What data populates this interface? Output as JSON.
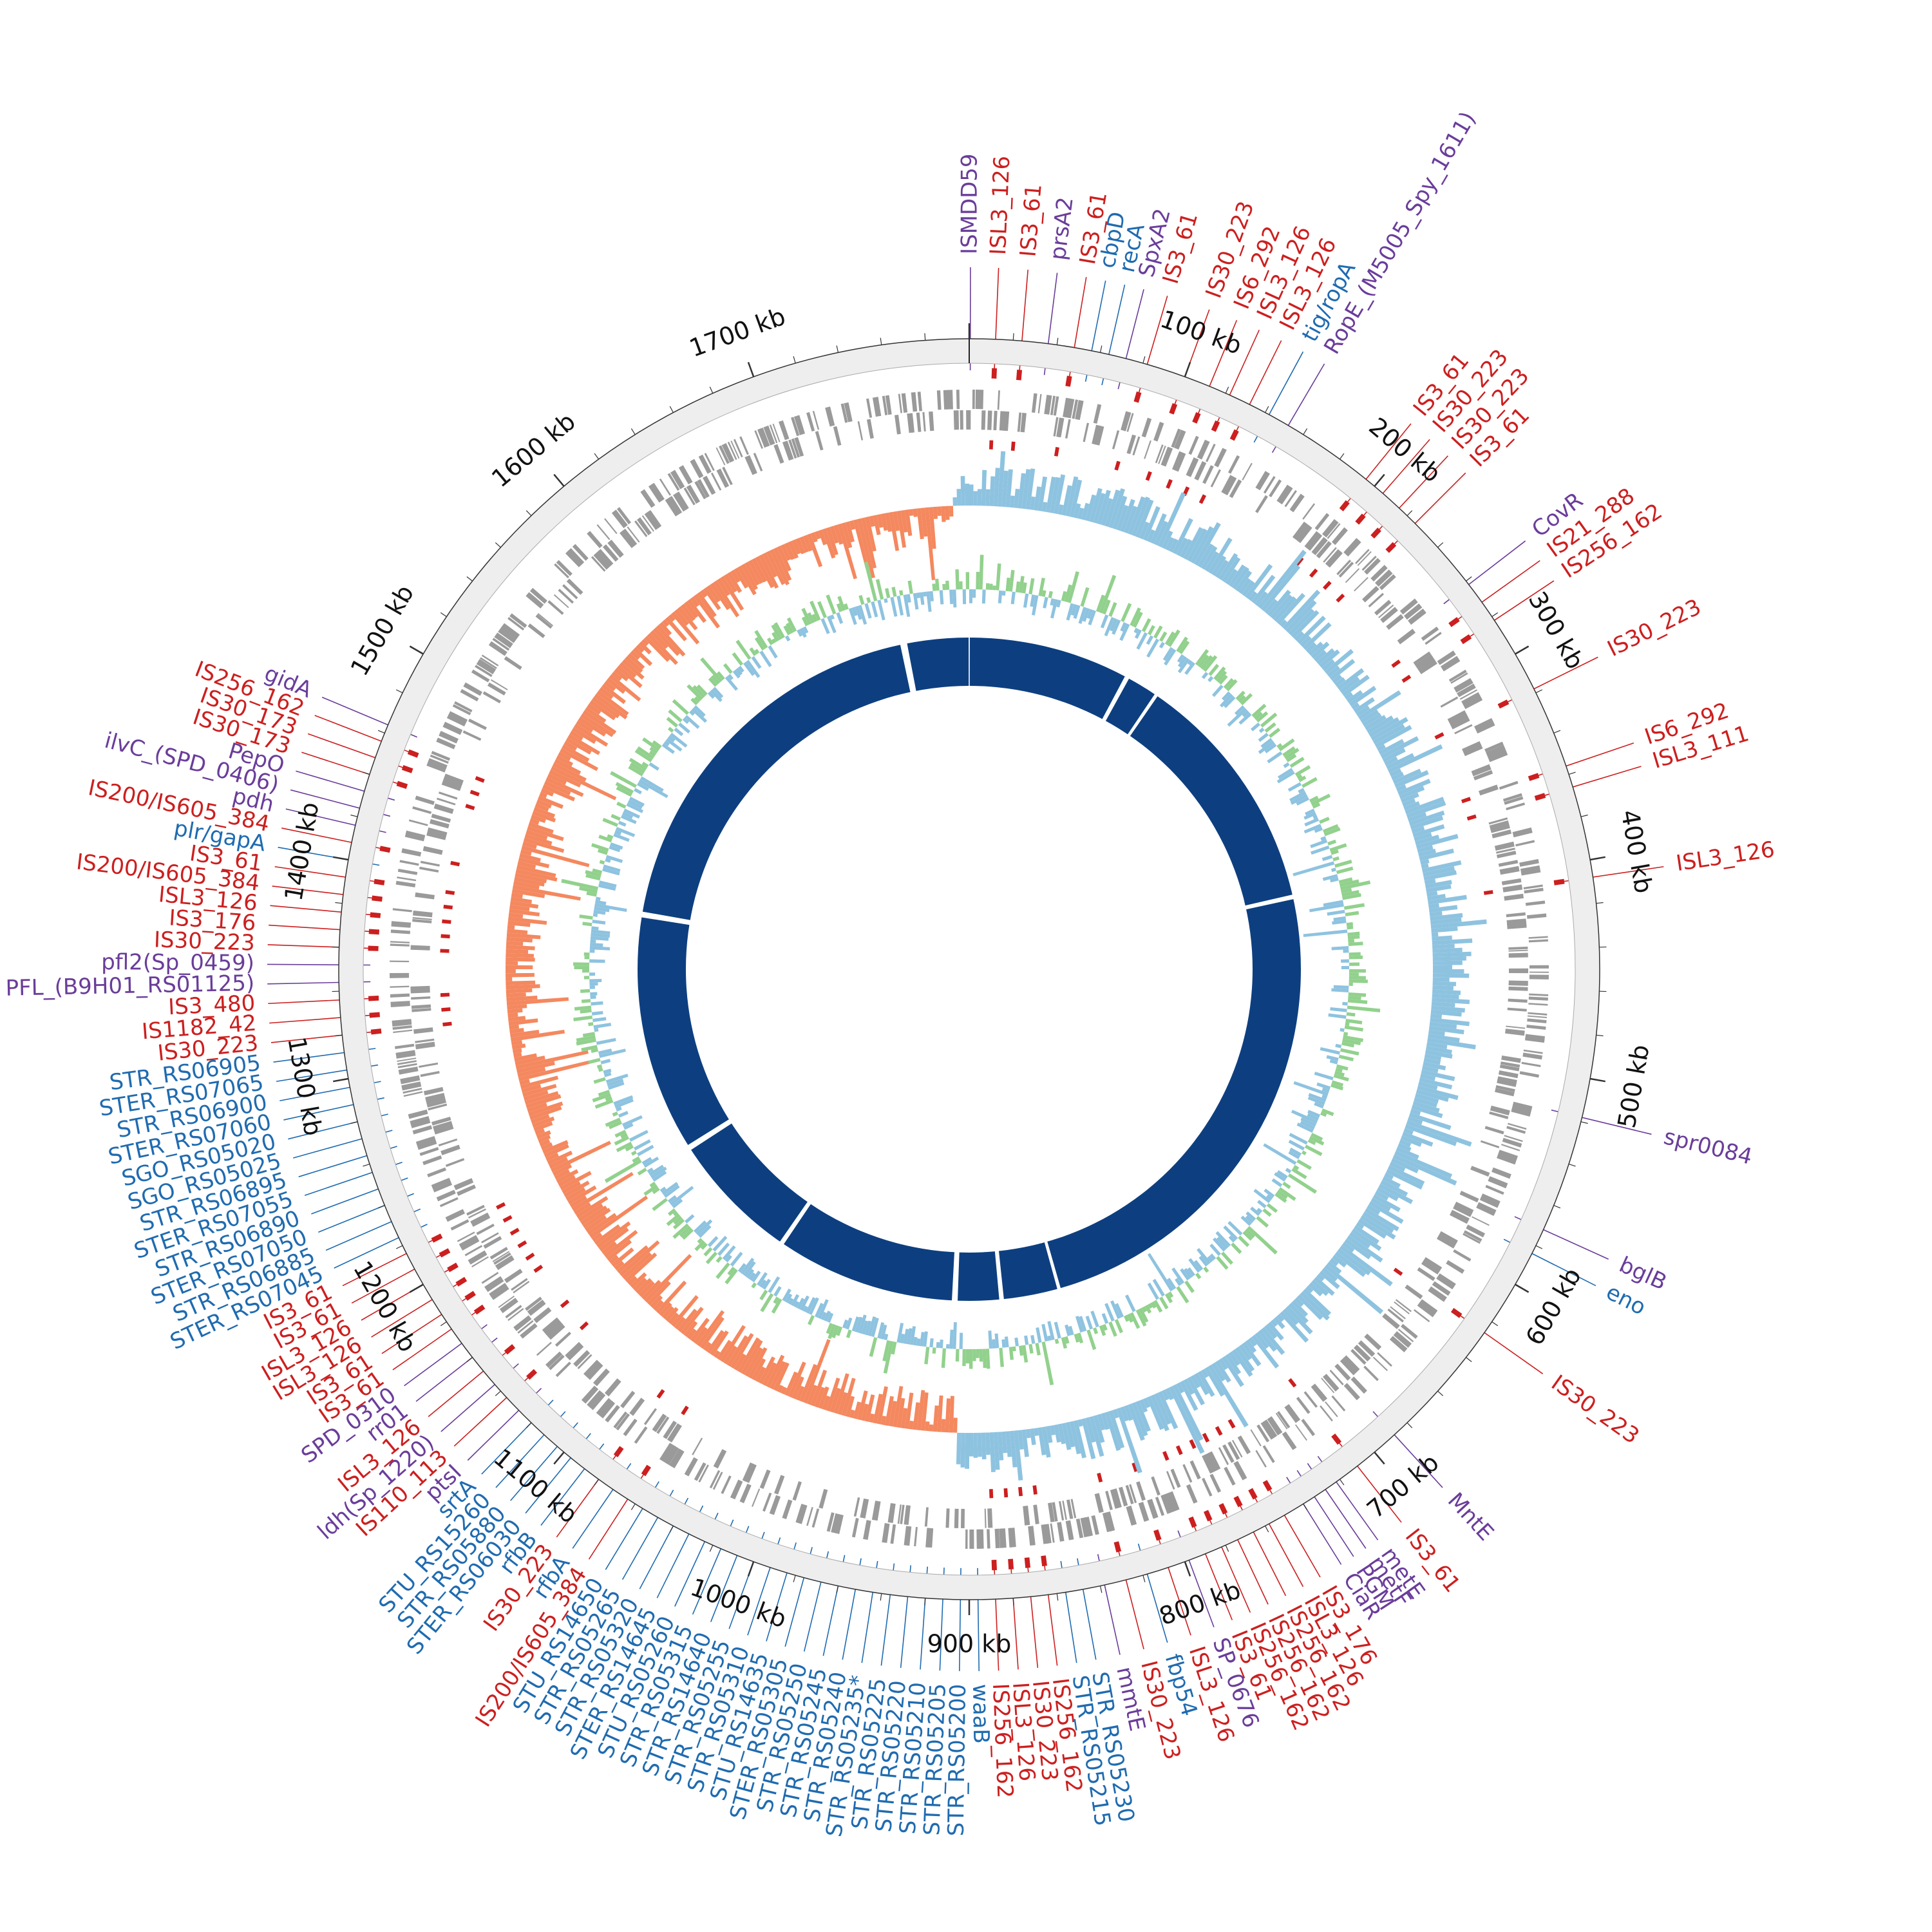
{
  "genome": {
    "length_kb": 1800,
    "axis_ticks": [
      {
        "kb": 100,
        "label": "100 kb"
      },
      {
        "kb": 200,
        "label": "200 kb"
      },
      {
        "kb": 300,
        "label": "300 kb"
      },
      {
        "kb": 400,
        "label": "400 kb"
      },
      {
        "kb": 500,
        "label": "500 kb"
      },
      {
        "kb": 600,
        "label": "600 kb"
      },
      {
        "kb": 700,
        "label": "700 kb"
      },
      {
        "kb": 800,
        "label": "800 kb"
      },
      {
        "kb": 900,
        "label": "900 kb"
      },
      {
        "kb": 1000,
        "label": "1000 kb"
      },
      {
        "kb": 1100,
        "label": "1100 kb"
      },
      {
        "kb": 1200,
        "label": "1200 kb"
      },
      {
        "kb": 1300,
        "label": "1300 kb"
      },
      {
        "kb": 1400,
        "label": "1400 kb"
      },
      {
        "kb": 1500,
        "label": "1500 kb"
      },
      {
        "kb": 1600,
        "label": "1600 kb"
      },
      {
        "kb": 1700,
        "label": "1700 kb"
      }
    ]
  },
  "colors": {
    "is_element": "#cc1f1f",
    "virulence_purple": "#6a3d9a",
    "virulence_blue": "#1f6bb0",
    "gc_content_pos": "#8ec3e0",
    "gc_content_neg": "#f4885f",
    "gc_skew_pos": "#92d18d",
    "gc_skew_neg": "#8ec3e0",
    "synteny_ring": "#0d3f80",
    "cds_ring": "#9a9a9a",
    "ruler_ring": "#eeeeee"
  },
  "labels": [
    {
      "text": "ISMDD59",
      "kb": 0.5,
      "cat": "purple"
    },
    {
      "text": "ISL3_126",
      "kb": 12,
      "cat": "red"
    },
    {
      "text": "IS3_61",
      "kb": 24,
      "cat": "red"
    },
    {
      "text": "prsA2",
      "kb": 36,
      "cat": "purple"
    },
    {
      "text": "IS3_61",
      "kb": 48,
      "cat": "red"
    },
    {
      "text": "cbpD",
      "kb": 56,
      "cat": "blue"
    },
    {
      "text": "recA",
      "kb": 64,
      "cat": "blue"
    },
    {
      "text": "SpxA2",
      "kb": 72,
      "cat": "purple"
    },
    {
      "text": "IS3_61",
      "kb": 82,
      "cat": "red"
    },
    {
      "text": "IS30_223",
      "kb": 100,
      "cat": "red"
    },
    {
      "text": "IS6_292",
      "kb": 112,
      "cat": "red"
    },
    {
      "text": "ISL3_126",
      "kb": 122,
      "cat": "red"
    },
    {
      "text": "ISL3_126",
      "kb": 132,
      "cat": "red"
    },
    {
      "text": "tig/ropA",
      "kb": 142,
      "cat": "blue"
    },
    {
      "text": "RopE_(M5005_Spy_1611)",
      "kb": 152,
      "cat": "purple"
    },
    {
      "text": "IS3_61",
      "kb": 195,
      "cat": "red"
    },
    {
      "text": "IS30_223",
      "kb": 205,
      "cat": "red"
    },
    {
      "text": "IS30_223",
      "kb": 215,
      "cat": "red"
    },
    {
      "text": "IS3_61",
      "kb": 225,
      "cat": "red"
    },
    {
      "text": "CovR",
      "kb": 262,
      "cat": "purple"
    },
    {
      "text": "IS21_288",
      "kb": 272,
      "cat": "red"
    },
    {
      "text": "IS256_162",
      "kb": 282,
      "cat": "red"
    },
    {
      "text": "IS30_223",
      "kb": 318,
      "cat": "red"
    },
    {
      "text": "IS6_292",
      "kb": 356,
      "cat": "red"
    },
    {
      "text": "ISL3_111",
      "kb": 366,
      "cat": "red"
    },
    {
      "text": "ISL3_126",
      "kb": 408,
      "cat": "red"
    },
    {
      "text": "spr0084",
      "kb": 518,
      "cat": "purple"
    },
    {
      "text": "bglB",
      "kb": 572,
      "cat": "purple"
    },
    {
      "text": "eno",
      "kb": 584,
      "cat": "blue"
    },
    {
      "text": "IS30_223",
      "kb": 626,
      "cat": "red"
    },
    {
      "text": "MntE",
      "kb": 688,
      "cat": "purple"
    },
    {
      "text": "IS3_61",
      "kb": 710,
      "cat": "red"
    },
    {
      "text": "metE",
      "kb": 722,
      "cat": "purple"
    },
    {
      "text": "metF",
      "kb": 728,
      "cat": "purple"
    },
    {
      "text": "PGM",
      "kb": 734,
      "cat": "purple"
    },
    {
      "text": "CiaR",
      "kb": 740,
      "cat": "purple"
    },
    {
      "text": "IS3_176",
      "kb": 750,
      "cat": "red"
    },
    {
      "text": "ISL3_126",
      "kb": 758,
      "cat": "red"
    },
    {
      "text": "IS256_162",
      "kb": 766,
      "cat": "red"
    },
    {
      "text": "IS256_162",
      "kb": 774,
      "cat": "red"
    },
    {
      "text": "IS256_162",
      "kb": 782,
      "cat": "red"
    },
    {
      "text": "IS3_61",
      "kb": 790,
      "cat": "red"
    },
    {
      "text": "SP_0676",
      "kb": 798,
      "cat": "purple"
    },
    {
      "text": "ISL3_126",
      "kb": 808,
      "cat": "red"
    },
    {
      "text": "fbp54",
      "kb": 818,
      "cat": "blue"
    },
    {
      "text": "IS30_223",
      "kb": 828,
      "cat": "red"
    },
    {
      "text": "mmtE",
      "kb": 838,
      "cat": "purple"
    },
    {
      "text": "STR_RS05230",
      "kb": 848,
      "cat": "blue"
    },
    {
      "text": "STR_RS05215",
      "kb": 856,
      "cat": "blue"
    },
    {
      "text": "IS256_162",
      "kb": 864,
      "cat": "red"
    },
    {
      "text": "IS30_223",
      "kb": 872,
      "cat": "red"
    },
    {
      "text": "ISL3_126",
      "kb": 880,
      "cat": "red"
    },
    {
      "text": "IS256_162",
      "kb": 888,
      "cat": "red"
    },
    {
      "text": "waaB",
      "kb": 896,
      "cat": "blue"
    },
    {
      "text": "STR_RS05200",
      "kb": 904,
      "cat": "blue"
    },
    {
      "text": "STR_RS05205",
      "kb": 912,
      "cat": "blue"
    },
    {
      "text": "STR_RS05210",
      "kb": 920,
      "cat": "blue"
    },
    {
      "text": "STR_RS05220",
      "kb": 928,
      "cat": "blue"
    },
    {
      "text": "STR_RS05225",
      "kb": 936,
      "cat": "blue"
    },
    {
      "text": "STR_RS05235*",
      "kb": 944,
      "cat": "blue"
    },
    {
      "text": "STR_RS05240",
      "kb": 952,
      "cat": "blue"
    },
    {
      "text": "STR_RS05245",
      "kb": 960,
      "cat": "blue"
    },
    {
      "text": "STR_RS05250",
      "kb": 968,
      "cat": "blue"
    },
    {
      "text": "STER_RS05305",
      "kb": 976,
      "cat": "blue"
    },
    {
      "text": "STU_RS14635",
      "kb": 984,
      "cat": "blue"
    },
    {
      "text": "STR_RS05310",
      "kb": 992,
      "cat": "blue"
    },
    {
      "text": "STR_RS05255",
      "kb": 1000,
      "cat": "blue"
    },
    {
      "text": "STR_RS14640",
      "kb": 1008,
      "cat": "blue"
    },
    {
      "text": "STR_RS05315",
      "kb": 1016,
      "cat": "blue"
    },
    {
      "text": "STU_RS05260",
      "kb": 1024,
      "cat": "blue"
    },
    {
      "text": "STER_RS14645",
      "kb": 1032,
      "cat": "blue"
    },
    {
      "text": "STR_RS05320",
      "kb": 1040,
      "cat": "blue"
    },
    {
      "text": "STR_RS05265",
      "kb": 1048,
      "cat": "blue"
    },
    {
      "text": "STU_RS14650",
      "kb": 1056,
      "cat": "blue"
    },
    {
      "text": "IS200/IS605_384",
      "kb": 1064,
      "cat": "red"
    },
    {
      "text": "rfbA",
      "kb": 1072,
      "cat": "blue"
    },
    {
      "text": "IS30_223",
      "kb": 1080,
      "cat": "red"
    },
    {
      "text": "rfbB",
      "kb": 1088,
      "cat": "blue"
    },
    {
      "text": "STER_RS06030",
      "kb": 1096,
      "cat": "blue"
    },
    {
      "text": "STR_RS05880",
      "kb": 1104,
      "cat": "blue"
    },
    {
      "text": "STU_RS15260",
      "kb": 1112,
      "cat": "blue"
    },
    {
      "text": "srtA",
      "kb": 1120,
      "cat": "blue"
    },
    {
      "text": "ptsI",
      "kb": 1128,
      "cat": "purple"
    },
    {
      "text": "IS110_113",
      "kb": 1136,
      "cat": "red"
    },
    {
      "text": "ldh(Sp_1220)",
      "kb": 1144,
      "cat": "purple"
    },
    {
      "text": "ISL3_126",
      "kb": 1152,
      "cat": "red"
    },
    {
      "text": "rr01",
      "kb": 1160,
      "cat": "purple"
    },
    {
      "text": "SPD_0310",
      "kb": 1168,
      "cat": "purple"
    },
    {
      "text": "IS3_61",
      "kb": 1176,
      "cat": "red"
    },
    {
      "text": "IS3_61",
      "kb": 1184,
      "cat": "red"
    },
    {
      "text": "ISL3_126",
      "kb": 1192,
      "cat": "red"
    },
    {
      "text": "ISL3_126",
      "kb": 1200,
      "cat": "red"
    },
    {
      "text": "IS3_61",
      "kb": 1208,
      "cat": "red"
    },
    {
      "text": "IS3_61",
      "kb": 1216,
      "cat": "red"
    },
    {
      "text": "STER_RS07045",
      "kb": 1224,
      "cat": "blue"
    },
    {
      "text": "STR_RS06885",
      "kb": 1232,
      "cat": "blue"
    },
    {
      "text": "STER_RS07050",
      "kb": 1240,
      "cat": "blue"
    },
    {
      "text": "STR_RS06890",
      "kb": 1248,
      "cat": "blue"
    },
    {
      "text": "STER_RS07055",
      "kb": 1256,
      "cat": "blue"
    },
    {
      "text": "STR_RS06895",
      "kb": 1264,
      "cat": "blue"
    },
    {
      "text": "SGO_RS05025",
      "kb": 1272,
      "cat": "blue"
    },
    {
      "text": "SGO_RS05020",
      "kb": 1280,
      "cat": "blue"
    },
    {
      "text": "STER_RS07060",
      "kb": 1288,
      "cat": "blue"
    },
    {
      "text": "STR_RS06900",
      "kb": 1296,
      "cat": "blue"
    },
    {
      "text": "STER_RS07065",
      "kb": 1304,
      "cat": "blue"
    },
    {
      "text": "STR_RS06905",
      "kb": 1312,
      "cat": "blue"
    },
    {
      "text": "IS30_223",
      "kb": 1320,
      "cat": "red"
    },
    {
      "text": "IS1182_42",
      "kb": 1328,
      "cat": "red"
    },
    {
      "text": "IS3_480",
      "kb": 1336,
      "cat": "red"
    },
    {
      "text": "PFL_(B9H01_RS01125)",
      "kb": 1344,
      "cat": "purple"
    },
    {
      "text": "pfl2(Sp_0459)",
      "kb": 1352,
      "cat": "purple"
    },
    {
      "text": "IS30_223",
      "kb": 1360,
      "cat": "red"
    },
    {
      "text": "IS3_176",
      "kb": 1368,
      "cat": "red"
    },
    {
      "text": "ISL3_126",
      "kb": 1376,
      "cat": "red"
    },
    {
      "text": "IS200/IS605_384",
      "kb": 1384,
      "cat": "red"
    },
    {
      "text": "IS3_61",
      "kb": 1392,
      "cat": "red"
    },
    {
      "text": "plr/gapA",
      "kb": 1400,
      "cat": "blue"
    },
    {
      "text": "IS200/IS605_384",
      "kb": 1408,
      "cat": "red"
    },
    {
      "text": "pdh",
      "kb": 1416,
      "cat": "purple"
    },
    {
      "text": "ilvC_(SPD_0406)",
      "kb": 1424,
      "cat": "purple"
    },
    {
      "text": "PepO",
      "kb": 1432,
      "cat": "purple"
    },
    {
      "text": "IS30_173",
      "kb": 1440,
      "cat": "red"
    },
    {
      "text": "IS30_173",
      "kb": 1448,
      "cat": "red"
    },
    {
      "text": "IS256_162",
      "kb": 1456,
      "cat": "red"
    },
    {
      "text": "gidA",
      "kb": 1464,
      "cat": "purple"
    }
  ]
}
